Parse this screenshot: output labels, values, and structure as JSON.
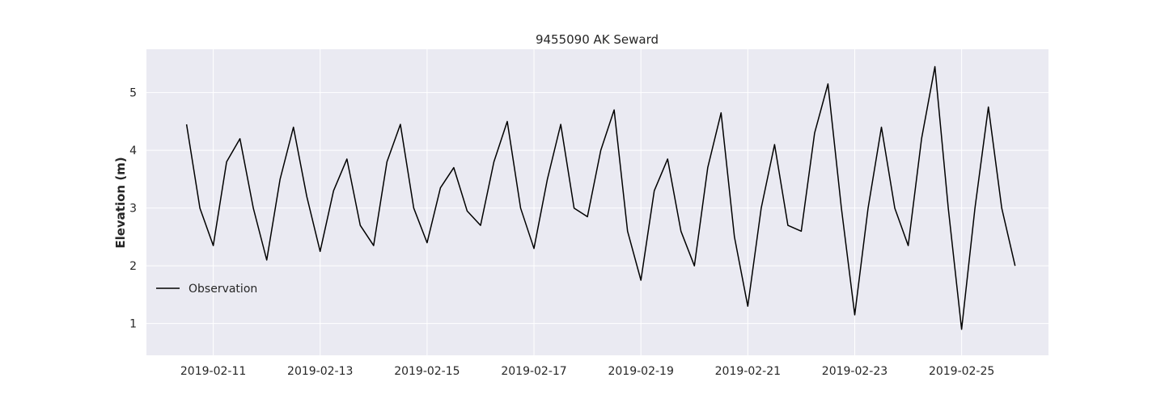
{
  "chart_data": {
    "type": "line",
    "title": "9455090 AK Seward",
    "xlabel": "",
    "ylabel": "Elevation (m)",
    "xlim": [
      "2019-02-09T18:00",
      "2019-02-26T15:00"
    ],
    "ylim": [
      0.45,
      5.75
    ],
    "x_ticks": [
      "2019-02-11",
      "2019-02-13",
      "2019-02-15",
      "2019-02-17",
      "2019-02-19",
      "2019-02-21",
      "2019-02-23",
      "2019-02-25"
    ],
    "y_ticks": [
      1,
      2,
      3,
      4,
      5
    ],
    "grid": true,
    "legend_position": "lower-left",
    "colors": {
      "background": "#eaeaf2",
      "grid": "#ffffff",
      "observation": "#000000",
      "nowcast_train": "#add8e6",
      "nowcast_test": "#0000ff",
      "forecast": "#008000",
      "forecast_spread": "#b0b0b0"
    },
    "series": [
      {
        "name": "Observation",
        "color": "#000000",
        "width": 1.5,
        "points": [
          [
            "2019-02-10T12:00",
            4.45
          ],
          [
            "2019-02-10T18:00",
            3.0
          ],
          [
            "2019-02-11T00:00",
            2.35
          ],
          [
            "2019-02-11T06:00",
            3.8
          ],
          [
            "2019-02-11T12:00",
            4.2
          ],
          [
            "2019-02-11T18:00",
            3.0
          ],
          [
            "2019-02-12T00:00",
            2.1
          ],
          [
            "2019-02-12T06:00",
            3.5
          ],
          [
            "2019-02-12T12:00",
            4.4
          ],
          [
            "2019-02-12T18:00",
            3.2
          ],
          [
            "2019-02-13T00:00",
            2.25
          ],
          [
            "2019-02-13T06:00",
            3.3
          ],
          [
            "2019-02-13T12:00",
            3.85
          ],
          [
            "2019-02-13T18:00",
            2.7
          ],
          [
            "2019-02-14T00:00",
            2.35
          ],
          [
            "2019-02-14T06:00",
            3.8
          ],
          [
            "2019-02-14T12:00",
            4.45
          ],
          [
            "2019-02-14T18:00",
            3.0
          ],
          [
            "2019-02-15T00:00",
            2.4
          ],
          [
            "2019-02-15T06:00",
            3.35
          ],
          [
            "2019-02-15T12:00",
            3.7
          ],
          [
            "2019-02-15T18:00",
            2.95
          ],
          [
            "2019-02-16T00:00",
            2.7
          ],
          [
            "2019-02-16T06:00",
            3.8
          ],
          [
            "2019-02-16T12:00",
            4.5
          ],
          [
            "2019-02-16T18:00",
            3.0
          ],
          [
            "2019-02-17T00:00",
            2.3
          ],
          [
            "2019-02-17T06:00",
            3.5
          ],
          [
            "2019-02-17T12:00",
            4.45
          ],
          [
            "2019-02-17T18:00",
            3.0
          ],
          [
            "2019-02-18T00:00",
            2.85
          ],
          [
            "2019-02-18T06:00",
            4.0
          ],
          [
            "2019-02-18T12:00",
            4.7
          ],
          [
            "2019-02-18T18:00",
            2.6
          ],
          [
            "2019-02-19T00:00",
            1.75
          ],
          [
            "2019-02-19T06:00",
            3.3
          ],
          [
            "2019-02-19T12:00",
            3.85
          ],
          [
            "2019-02-19T18:00",
            2.6
          ],
          [
            "2019-02-20T00:00",
            2.0
          ],
          [
            "2019-02-20T06:00",
            3.7
          ],
          [
            "2019-02-20T12:00",
            4.65
          ],
          [
            "2019-02-20T18:00",
            2.5
          ],
          [
            "2019-02-21T00:00",
            1.3
          ],
          [
            "2019-02-21T06:00",
            3.0
          ],
          [
            "2019-02-21T12:00",
            4.1
          ],
          [
            "2019-02-21T18:00",
            2.7
          ],
          [
            "2019-02-22T00:00",
            2.6
          ],
          [
            "2019-02-22T06:00",
            4.3
          ],
          [
            "2019-02-22T12:00",
            5.15
          ],
          [
            "2019-02-22T18:00",
            3.0
          ],
          [
            "2019-02-23T00:00",
            1.15
          ],
          [
            "2019-02-23T06:00",
            3.0
          ],
          [
            "2019-02-23T12:00",
            4.4
          ],
          [
            "2019-02-23T18:00",
            3.0
          ],
          [
            "2019-02-24T00:00",
            2.35
          ],
          [
            "2019-02-24T06:00",
            4.2
          ],
          [
            "2019-02-24T12:00",
            5.45
          ],
          [
            "2019-02-24T18:00",
            3.0
          ],
          [
            "2019-02-25T00:00",
            0.9
          ],
          [
            "2019-02-25T06:00",
            3.0
          ],
          [
            "2019-02-25T12:00",
            4.75
          ],
          [
            "2019-02-25T18:00",
            3.0
          ],
          [
            "2019-02-26T00:00",
            2.0
          ]
        ]
      }
    ]
  }
}
